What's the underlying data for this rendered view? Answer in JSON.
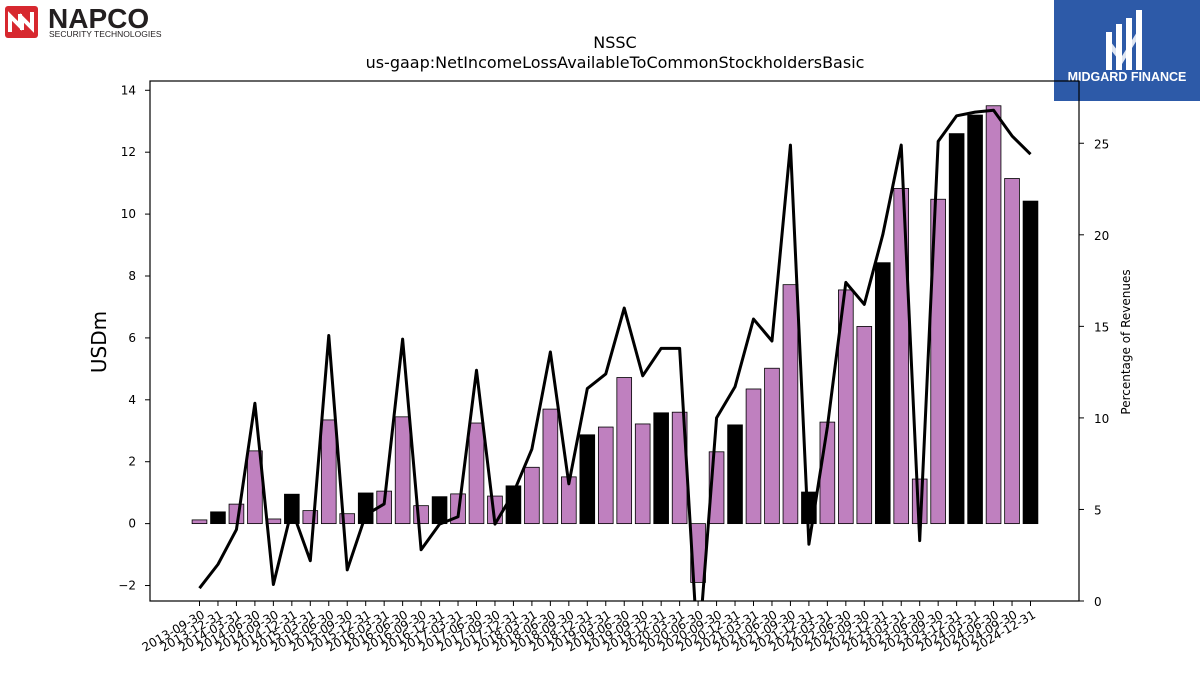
{
  "branding": {
    "left_logo_text": "NAPCO",
    "left_logo_sub": "SECURITY TECHNOLOGIES",
    "right_logo_text": "MIDGARD FINANCE",
    "brand_red": "#d7282f",
    "brand_blue": "#2d5aa8"
  },
  "chart_data": {
    "type": "bar",
    "title": "NSSC",
    "subtitle": "us-gaap:NetIncomeLossAvailableToCommonStockholdersBasic",
    "ylabel": "USDm",
    "y2label": "Percentage of Revenues",
    "ylim": [
      -2.5,
      14.3
    ],
    "y2lim": [
      0,
      28.4
    ],
    "yticks": [
      -2,
      0,
      2,
      4,
      6,
      8,
      10,
      12,
      14
    ],
    "y2ticks": [
      0,
      5,
      10,
      15,
      20,
      25
    ],
    "bar_colors": {
      "purple": "#bf80bf",
      "black": "#000000"
    },
    "line_color": "#000000",
    "categories": [
      "2013-09-30",
      "2013-12-31",
      "2014-03-31",
      "2014-06-30",
      "2014-09-30",
      "2014-12-31",
      "2015-03-31",
      "2015-06-30",
      "2015-09-30",
      "2015-12-31",
      "2016-03-31",
      "2016-06-30",
      "2016-09-30",
      "2016-12-31",
      "2017-03-31",
      "2017-06-30",
      "2017-09-30",
      "2017-12-31",
      "2018-03-31",
      "2018-06-30",
      "2018-09-30",
      "2018-12-31",
      "2019-03-31",
      "2019-06-30",
      "2019-09-30",
      "2019-12-31",
      "2020-03-31",
      "2020-06-30",
      "2020-09-30",
      "2020-12-31",
      "2021-03-31",
      "2021-06-30",
      "2021-09-30",
      "2021-12-31",
      "2022-03-31",
      "2022-06-30",
      "2022-09-30",
      "2022-12-31",
      "2023-03-31",
      "2023-06-30",
      "2023-09-30",
      "2023-12-31",
      "2024-03-31",
      "2024-06-30",
      "2024-09-30",
      "2024-12-31"
    ],
    "values": [
      0.12,
      0.38,
      0.63,
      2.35,
      0.15,
      0.95,
      0.42,
      3.35,
      0.32,
      0.99,
      1.05,
      3.45,
      0.58,
      0.87,
      0.96,
      3.25,
      0.89,
      1.22,
      1.82,
      3.7,
      1.51,
      2.87,
      3.12,
      4.72,
      3.22,
      3.58,
      3.6,
      -1.9,
      2.32,
      3.19,
      4.35,
      5.02,
      7.72,
      1.02,
      3.28,
      7.55,
      6.37,
      8.43,
      10.83,
      1.44,
      10.48,
      12.6,
      13.2,
      13.5,
      11.15,
      10.42
    ],
    "bar_color_keys": [
      "purple",
      "black",
      "purple",
      "purple",
      "purple",
      "black",
      "purple",
      "purple",
      "purple",
      "black",
      "purple",
      "purple",
      "purple",
      "black",
      "purple",
      "purple",
      "purple",
      "black",
      "purple",
      "purple",
      "purple",
      "black",
      "purple",
      "purple",
      "purple",
      "black",
      "purple",
      "purple",
      "purple",
      "black",
      "purple",
      "purple",
      "purple",
      "black",
      "purple",
      "purple",
      "purple",
      "black",
      "purple",
      "purple",
      "purple",
      "black",
      "black",
      "purple",
      "purple",
      "black"
    ],
    "pct_of_revenues": [
      0.7,
      2.0,
      3.9,
      10.8,
      0.9,
      5.0,
      2.2,
      14.5,
      1.7,
      4.7,
      5.3,
      14.3,
      2.8,
      4.2,
      4.6,
      12.6,
      4.2,
      5.9,
      8.3,
      13.6,
      6.4,
      11.6,
      12.4,
      16.0,
      12.3,
      13.8,
      13.8,
      -3.0,
      10.0,
      11.7,
      15.4,
      14.2,
      24.9,
      3.1,
      9.5,
      17.4,
      16.2,
      20.0,
      24.9,
      3.3,
      25.1,
      26.5,
      26.7,
      26.8,
      25.4,
      24.4
    ]
  }
}
